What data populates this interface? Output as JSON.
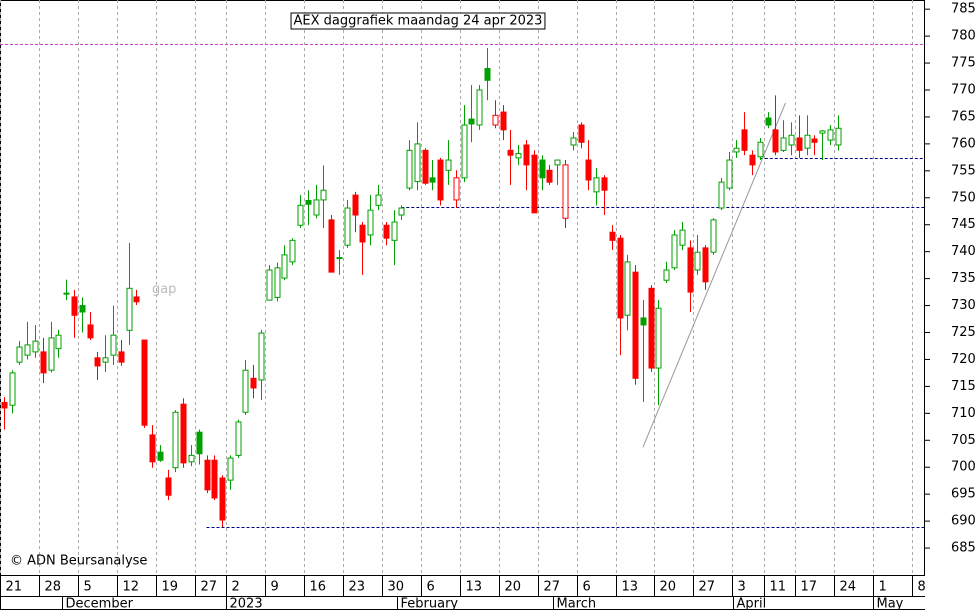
{
  "chart_data": {
    "type": "candlestick",
    "title": "AEX daggrafiek maandag 24 apr 2023",
    "annotation": "gap",
    "annotation_pos": [
      19,
      733
    ],
    "copyright": "© ADN Beursanalyse",
    "up_color": "#00a000",
    "down_color": "#ff0000",
    "open": [
      712,
      711.5,
      719.5,
      720.8,
      721.4,
      721.4,
      718,
      722,
      732.3,
      731.6,
      730,
      726.4,
      720.3,
      719.5,
      720.8,
      721.4,
      725.4,
      731.6,
      723.6,
      706,
      702.8,
      698,
      699.9,
      711.7,
      701,
      706.5,
      701.3,
      701.3,
      698,
      697.6,
      702.2,
      710.2,
      716.5,
      716.2,
      731,
      731.5,
      735.1,
      738.1,
      744.9,
      749.5,
      746.8,
      749.6,
      745.9,
      738.8,
      741.2,
      750.5,
      744.9,
      743.1,
      748.6,
      744.9,
      742.1,
      746.8,
      751.8,
      753,
      758.8,
      753.7,
      757,
      755.1,
      749.6,
      753.7,
      764.6,
      763.5,
      774,
      763.5,
      765.9,
      758.8,
      757.4,
      759.8,
      757.9,
      757,
      755.1,
      756.1,
      746.2,
      759.8,
      763.5,
      757,
      751.1,
      753.7,
      743.6,
      742.5,
      728.2,
      736.2,
      727.7,
      733.2,
      718.4,
      734.7,
      737,
      741.2,
      740.7,
      736.6,
      740.7,
      739.9,
      748.1,
      751.8,
      758.5,
      762.6,
      757.9,
      757.6,
      764.8,
      762.6,
      758.8,
      759.8,
      761.1,
      759.2,
      760.9,
      762,
      760.7,
      759.8
    ],
    "high": [
      713,
      718,
      723.4,
      727,
      726.4,
      724,
      727,
      725.5,
      734.8,
      732.9,
      731.5,
      728.8,
      721.4,
      724.5,
      730,
      723.6,
      741.6,
      732.9,
      723.6,
      707.8,
      704.1,
      699.5,
      710.6,
      712.8,
      704.1,
      707,
      702.2,
      702.2,
      698.5,
      702.2,
      708.8,
      719.9,
      719,
      725.5,
      737.5,
      738,
      741.2,
      742.5,
      750.5,
      751.4,
      752.4,
      756,
      746.8,
      740.3,
      749.6,
      751.1,
      745.5,
      750.5,
      752.4,
      745.5,
      747.7,
      748.6,
      760.7,
      764,
      759.2,
      757,
      757.4,
      760.7,
      755.1,
      767.2,
      770.9,
      770.9,
      777.8,
      768.1,
      767.2,
      762.6,
      759.8,
      760.7,
      758.8,
      757.9,
      756.1,
      757,
      757,
      762.2,
      764,
      760.7,
      755.5,
      754.2,
      744.9,
      743.1,
      739.4,
      737.5,
      731,
      733.8,
      731,
      738.1,
      744,
      745.5,
      742.1,
      743.1,
      741.2,
      746.2,
      753.7,
      758.5,
      760.7,
      765.9,
      758.8,
      761.1,
      765.9,
      769,
      764.4,
      764,
      765.3,
      765.3,
      761.6,
      762.6,
      763.5,
      765.3
    ],
    "low": [
      707,
      710,
      719,
      720,
      720.3,
      715.6,
      717.6,
      720.3,
      731,
      724,
      725,
      723.6,
      716.2,
      717.7,
      719,
      718.8,
      722.7,
      730.1,
      707.3,
      699.9,
      701,
      693.9,
      699.1,
      699.9,
      700.2,
      700.5,
      695.2,
      693.9,
      688.9,
      695.8,
      701.7,
      709.7,
      712.8,
      712.5,
      731,
      730.8,
      734.7,
      737.5,
      744.4,
      744.9,
      746.2,
      744.4,
      736.2,
      735.7,
      740.7,
      743.6,
      735.7,
      741.2,
      747.7,
      741.2,
      737.5,
      745.9,
      751.4,
      751.4,
      752.4,
      751.4,
      748.6,
      752.4,
      748.1,
      752.9,
      760.3,
      762.6,
      768.1,
      762.9,
      760.7,
      752.4,
      756.1,
      751.4,
      747.2,
      751.4,
      752.4,
      752.4,
      744.4,
      758.8,
      759.2,
      751.4,
      748.6,
      746.8,
      740.3,
      720.8,
      725.4,
      715.3,
      712.1,
      717.7,
      711.5,
      734.2,
      736.6,
      740.3,
      728.8,
      735.7,
      732.9,
      739.4,
      747.7,
      751.4,
      757.4,
      757.9,
      754.2,
      757,
      762.9,
      757.9,
      758.5,
      757.9,
      757.4,
      757.9,
      757.9,
      757,
      759.8,
      758.8
    ],
    "close": [
      711,
      717.5,
      722.3,
      722.7,
      723.4,
      717.5,
      724,
      724.5,
      732.2,
      728.2,
      728.8,
      724,
      718.8,
      720.3,
      724.5,
      719.5,
      733.2,
      730.7,
      707.8,
      701,
      701.3,
      694.8,
      710.2,
      700.8,
      702.2,
      702.5,
      695.8,
      694.3,
      690.2,
      701.7,
      708.4,
      718,
      714.7,
      724.9,
      736.6,
      737,
      739.4,
      742.1,
      748.6,
      748.8,
      749.6,
      751.4,
      736.2,
      738.9,
      748.1,
      746.8,
      741.8,
      747.7,
      750.5,
      742.5,
      745.5,
      748.1,
      758.8,
      760,
      752.7,
      752.9,
      749.6,
      757,
      753.7,
      763.5,
      763.7,
      770,
      771.8,
      765.3,
      762.6,
      757.9,
      758.2,
      756.1,
      747.2,
      753.7,
      752.9,
      757,
      756.1,
      761.1,
      760.3,
      753.3,
      753.7,
      751.4,
      742.1,
      727.7,
      738.1,
      716.5,
      726.4,
      718.4,
      729.5,
      736.6,
      743.1,
      744,
      732.5,
      739.9,
      734.4,
      745.9,
      752.9,
      757,
      759.2,
      758.8,
      756.1,
      760.3,
      763.5,
      758.5,
      761.1,
      761.6,
      758.8,
      761.6,
      760.3,
      762.4,
      762.6,
      762.9
    ],
    "xlim": [
      -0.5,
      118.2
    ],
    "ylim": [
      680,
      786.7
    ],
    "yticks": [
      685,
      690,
      695,
      700,
      705,
      710,
      715,
      720,
      725,
      730,
      735,
      740,
      745,
      750,
      755,
      760,
      765,
      770,
      775,
      780,
      785
    ],
    "xticks": [
      {
        "value": 0,
        "label": "21"
      },
      {
        "value": 5,
        "label": "28"
      },
      {
        "value": 10,
        "label": "5"
      },
      {
        "value": 15,
        "label": "12"
      },
      {
        "value": 20,
        "label": "19"
      },
      {
        "value": 25,
        "label": "27"
      },
      {
        "value": 29,
        "label": "2"
      },
      {
        "value": 34,
        "label": "9"
      },
      {
        "value": 39,
        "label": "16"
      },
      {
        "value": 44,
        "label": "23"
      },
      {
        "value": 49,
        "label": "30"
      },
      {
        "value": 54,
        "label": "6"
      },
      {
        "value": 59,
        "label": "13"
      },
      {
        "value": 64,
        "label": "20"
      },
      {
        "value": 69,
        "label": "27"
      },
      {
        "value": 74,
        "label": "6"
      },
      {
        "value": 79,
        "label": "13"
      },
      {
        "value": 84,
        "label": "20"
      },
      {
        "value": 89,
        "label": "27"
      },
      {
        "value": 94,
        "label": "3"
      },
      {
        "value": 98,
        "label": "11"
      },
      {
        "value": 102,
        "label": "17"
      },
      {
        "value": 107,
        "label": "24"
      },
      {
        "value": 112,
        "label": "1"
      },
      {
        "value": 117,
        "label": "8"
      }
    ],
    "month_ticks": [
      {
        "value": 7.5,
        "label": "December"
      },
      {
        "value": 28.5,
        "label": "2023"
      },
      {
        "value": 50.5,
        "label": "February"
      },
      {
        "value": 70.5,
        "label": "March"
      },
      {
        "value": 93.5,
        "label": "April"
      },
      {
        "value": 111.5,
        "label": "May"
      }
    ],
    "hlines": [
      {
        "value": 778.5,
        "from": -0.5,
        "color": "#cc44cc"
      },
      {
        "value": 757.4,
        "from": 97,
        "color": "#000080"
      },
      {
        "value": 748.3,
        "from": 51,
        "color": "#000080"
      },
      {
        "value": 688.9,
        "from": 26,
        "color": "#000080"
      }
    ],
    "trendline": {
      "x": [
        82,
        100.3
      ],
      "y": [
        703.7,
        767.6
      ],
      "color": "#999999"
    },
    "grid": true
  }
}
